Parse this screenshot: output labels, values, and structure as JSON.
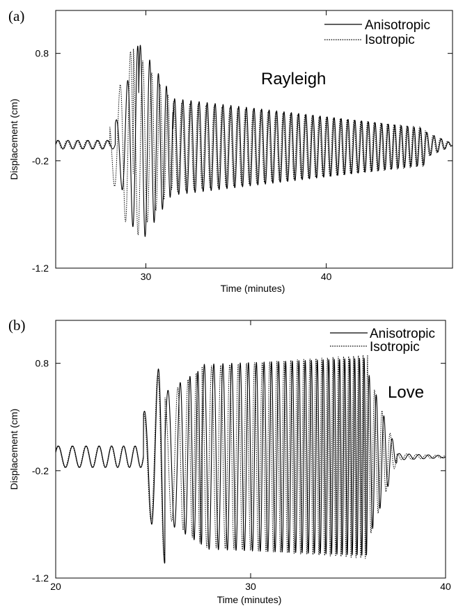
{
  "chart_data": [
    {
      "type": "line",
      "panel_label": "(a)",
      "annotation": "Rayleigh",
      "xlabel": "Time (minutes)",
      "ylabel": "Displacement (cm)",
      "xlim": [
        25,
        47
      ],
      "ylim": [
        -1.2,
        1.2
      ],
      "xticks": [
        30,
        40
      ],
      "yticks": [
        0.8,
        -0.2,
        -1.2
      ],
      "xtick_labels": [
        "30",
        "40"
      ],
      "ytick_labels": [
        "0.8",
        "-0.2",
        "-1.2"
      ],
      "grid": false,
      "legend_position": "top-right",
      "series": [
        {
          "name": "Anisotropic",
          "style": "solid",
          "color": "#000000",
          "wave": {
            "segments": [
              {
                "t0": 25.0,
                "t1": 28.3,
                "base": -0.05,
                "amp0": 0.04,
                "amp1": 0.04,
                "period0": 0.55,
                "period1": 0.55,
                "phase": 0.0
              },
              {
                "t0": 28.3,
                "t1": 29.6,
                "base": -0.05,
                "amp0": 0.2,
                "amp1": 0.95,
                "period0": 0.7,
                "period1": 0.6,
                "phase": 1.2
              },
              {
                "t0": 29.6,
                "t1": 31.5,
                "base": -0.05,
                "amp0": 0.95,
                "amp1": 0.45,
                "period0": 0.55,
                "period1": 0.47,
                "phase": 0.5
              },
              {
                "t0": 31.5,
                "t1": 45.5,
                "base": -0.07,
                "amp0": 0.45,
                "amp1": 0.17,
                "period0": 0.46,
                "period1": 0.4,
                "phase": 0.3
              },
              {
                "t0": 45.5,
                "t1": 47.0,
                "base": -0.05,
                "amp0": 0.12,
                "amp1": 0.01,
                "period0": 0.4,
                "period1": 0.4,
                "phase": 0.3
              }
            ]
          }
        },
        {
          "name": "Isotropic",
          "style": "dotted",
          "color": "#000000",
          "wave": {
            "segments": [
              {
                "t0": 25.0,
                "t1": 28.0,
                "base": -0.05,
                "amp0": 0.04,
                "amp1": 0.04,
                "period0": 0.55,
                "period1": 0.55,
                "phase": 0.6
              },
              {
                "t0": 28.0,
                "t1": 29.3,
                "base": -0.05,
                "amp0": 0.25,
                "amp1": 0.95,
                "period0": 0.7,
                "period1": 0.6,
                "phase": 2.4
              },
              {
                "t0": 29.3,
                "t1": 31.5,
                "base": -0.05,
                "amp0": 0.9,
                "amp1": 0.4,
                "period0": 0.55,
                "period1": 0.47,
                "phase": 1.6
              },
              {
                "t0": 31.5,
                "t1": 45.5,
                "base": -0.07,
                "amp0": 0.42,
                "amp1": 0.18,
                "period0": 0.46,
                "period1": 0.4,
                "phase": 1.1
              },
              {
                "t0": 45.5,
                "t1": 47.0,
                "base": -0.05,
                "amp0": 0.12,
                "amp1": 0.01,
                "period0": 0.4,
                "period1": 0.4,
                "phase": 1.1
              }
            ]
          }
        }
      ]
    },
    {
      "type": "line",
      "panel_label": "(b)",
      "annotation": "Love",
      "xlabel": "Time (minutes)",
      "ylabel": "Displacement (cm)",
      "xlim": [
        20,
        40
      ],
      "ylim": [
        -1.2,
        1.2
      ],
      "xticks": [
        20,
        30,
        40
      ],
      "yticks": [
        0.8,
        -0.2,
        -1.2
      ],
      "xtick_labels": [
        "20",
        "30",
        "40"
      ],
      "ytick_labels": [
        "0.8",
        "-0.2",
        "-1.2"
      ],
      "grid": false,
      "legend_position": "top-right",
      "series": [
        {
          "name": "Anisotropic",
          "style": "solid",
          "color": "#000000",
          "wave": {
            "segments": [
              {
                "t0": 20.0,
                "t1": 24.5,
                "base": -0.07,
                "amp0": 0.1,
                "amp1": 0.1,
                "period0": 0.75,
                "period1": 0.65,
                "phase": 0.4
              },
              {
                "t0": 24.5,
                "t1": 25.6,
                "base": -0.07,
                "amp0": 0.4,
                "amp1": 1.0,
                "period0": 0.8,
                "period1": 0.7,
                "phase": 1.3
              },
              {
                "t0": 25.6,
                "t1": 27.5,
                "base": -0.07,
                "amp0": 0.6,
                "amp1": 0.82,
                "period0": 0.75,
                "period1": 0.5,
                "phase": 0.2
              },
              {
                "t0": 27.5,
                "t1": 36.0,
                "base": -0.07,
                "amp0": 0.86,
                "amp1": 0.92,
                "period0": 0.5,
                "period1": 0.34,
                "phase": 0.0
              },
              {
                "t0": 36.0,
                "t1": 37.5,
                "base": -0.07,
                "amp0": 0.8,
                "amp1": 0.05,
                "period0": 0.34,
                "period1": 0.4,
                "phase": 0.0
              },
              {
                "t0": 37.5,
                "t1": 40.0,
                "base": -0.07,
                "amp0": 0.03,
                "amp1": 0.01,
                "period0": 0.5,
                "period1": 0.5,
                "phase": 0.0
              }
            ]
          }
        },
        {
          "name": "Isotropic",
          "style": "dotted",
          "color": "#000000",
          "wave": {
            "segments": [
              {
                "t0": 20.0,
                "t1": 24.5,
                "base": -0.07,
                "amp0": 0.1,
                "amp1": 0.1,
                "period0": 0.75,
                "period1": 0.65,
                "phase": 0.6
              },
              {
                "t0": 24.5,
                "t1": 25.6,
                "base": -0.07,
                "amp0": 0.4,
                "amp1": 0.95,
                "period0": 0.8,
                "period1": 0.7,
                "phase": 1.6
              },
              {
                "t0": 25.6,
                "t1": 27.5,
                "base": -0.07,
                "amp0": 0.55,
                "amp1": 0.82,
                "period0": 0.75,
                "period1": 0.5,
                "phase": 1.6
              },
              {
                "t0": 27.5,
                "t1": 36.0,
                "base": -0.07,
                "amp0": 0.84,
                "amp1": 0.95,
                "period0": 0.5,
                "period1": 0.34,
                "phase": 1.5
              },
              {
                "t0": 36.0,
                "t1": 37.5,
                "base": -0.07,
                "amp0": 0.8,
                "amp1": 0.05,
                "period0": 0.34,
                "period1": 0.4,
                "phase": 1.5
              },
              {
                "t0": 37.5,
                "t1": 40.0,
                "base": -0.07,
                "amp0": 0.03,
                "amp1": 0.01,
                "period0": 0.5,
                "period1": 0.5,
                "phase": 1.5
              }
            ]
          }
        }
      ]
    }
  ]
}
